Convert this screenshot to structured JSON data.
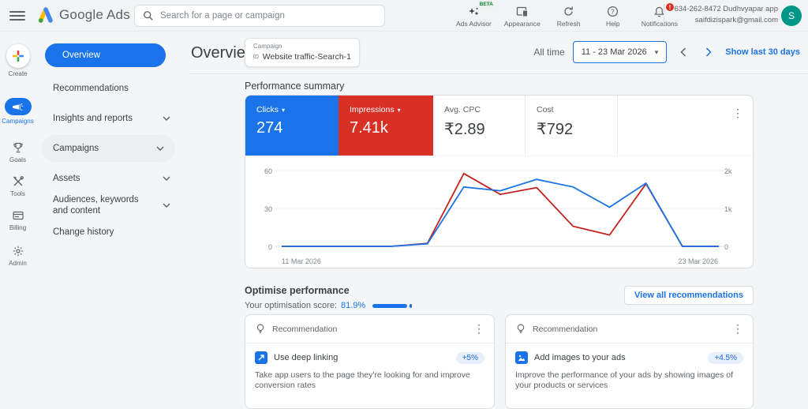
{
  "topbar": {
    "logo_text": "Google Ads",
    "search_placeholder": "Search for a page or campaign",
    "actions": {
      "ads_advisor": {
        "label": "Ads Advisor",
        "beta": "BETA"
      },
      "appearance": {
        "label": "Appearance"
      },
      "refresh": {
        "label": "Refresh"
      },
      "help": {
        "label": "Help"
      },
      "notifications": {
        "label": "Notifications",
        "alert": "!"
      }
    },
    "account": {
      "id_line": "634-262-8472 Dudhvyapar app",
      "email": "saifdizispark@gmail.com",
      "avatar_letter": "S"
    }
  },
  "rail": {
    "items": [
      {
        "label": "Create"
      },
      {
        "label": "Campaigns",
        "active": true
      },
      {
        "label": "Goals"
      },
      {
        "label": "Tools"
      },
      {
        "label": "Billing"
      },
      {
        "label": "Admin"
      }
    ]
  },
  "sidenav": {
    "items": [
      {
        "label": "Overview",
        "active": true
      },
      {
        "label": "Recommendations"
      },
      {
        "label": "Insights and reports",
        "expandable": true
      },
      {
        "label": "Campaigns",
        "expandable": true,
        "highlighted": true
      },
      {
        "label": "Assets",
        "expandable": true
      },
      {
        "label": "Audiences, keywords and content",
        "expandable": true
      },
      {
        "label": "Change history"
      }
    ]
  },
  "header": {
    "title": "Overview",
    "scope_label": "Campaign",
    "scope_value": "Website traffic-Search-1",
    "range_label": "All time",
    "date_range": "11 - 23 Mar 2026",
    "show_last_link": "Show last 30 days"
  },
  "performance": {
    "section_title": "Performance summary",
    "metrics": [
      {
        "label": "Clicks",
        "value": "274",
        "color": "#1a73e8",
        "selector": true
      },
      {
        "label": "Impressions",
        "value": "7.41k",
        "color": "#d93025",
        "selector": true
      },
      {
        "label": "Avg. CPC",
        "value": "₹2.89"
      },
      {
        "label": "Cost",
        "value": "₹792"
      }
    ]
  },
  "chart_data": {
    "type": "line",
    "x": [
      "11 Mar 2026",
      "12 Mar 2026",
      "13 Mar 2026",
      "14 Mar 2026",
      "15 Mar 2026",
      "16 Mar 2026",
      "17 Mar 2026",
      "18 Mar 2026",
      "19 Mar 2026",
      "20 Mar 2026",
      "21 Mar 2026",
      "22 Mar 2026",
      "23 Mar 2026"
    ],
    "series": [
      {
        "name": "Impressions",
        "axis": "right",
        "color": "#c5221f",
        "values": [
          0,
          0,
          0,
          0,
          80,
          1920,
          1370,
          1550,
          530,
          300,
          1650,
          0,
          0
        ]
      },
      {
        "name": "Clicks",
        "axis": "left",
        "color": "#1a73e8",
        "values": [
          0,
          0,
          0,
          0,
          2,
          47,
          44,
          53,
          47,
          31,
          50,
          0,
          0
        ]
      }
    ],
    "left_axis": {
      "max": 60,
      "ticks": [
        "60",
        "30",
        "0"
      ]
    },
    "right_axis": {
      "max": 2000,
      "ticks": [
        "2k",
        "1k",
        "0"
      ]
    },
    "x_ticks": {
      "first": "11 Mar 2026",
      "last": "23 Mar 2026"
    },
    "grid": true,
    "legend_position": "none"
  },
  "optimise": {
    "title": "Optimise performance",
    "score_label": "Your optimisation score:",
    "score": "81.9%",
    "view_all_button": "View all recommendations"
  },
  "recommendations": [
    {
      "header": "Recommendation",
      "title": "Use deep linking",
      "uplift": "+5%",
      "description": "Take app users to the page they're looking for and improve conversion rates"
    },
    {
      "header": "Recommendation",
      "title": "Add images to your ads",
      "uplift": "+4.5%",
      "description": "Improve the performance of your ads by showing images of your products or services"
    }
  ]
}
